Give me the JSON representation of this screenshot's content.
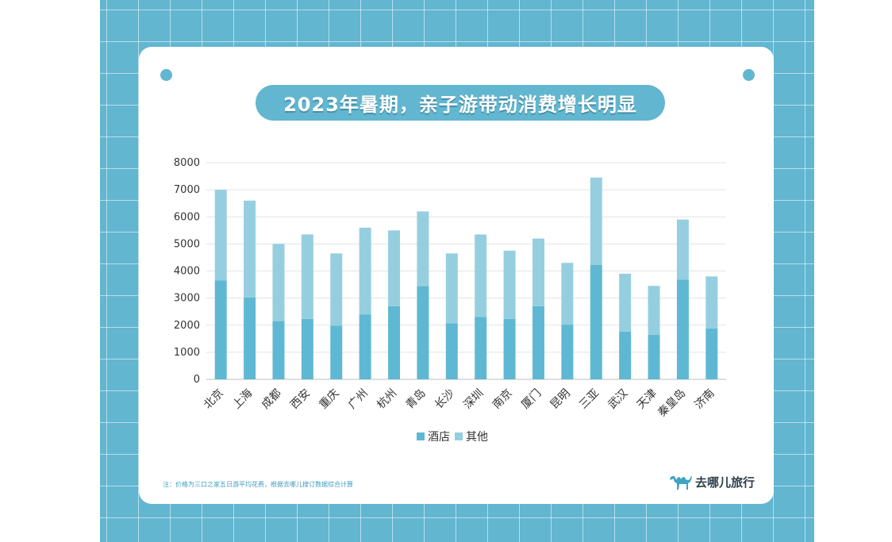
{
  "header": {
    "title": "2023年暑期，亲子游带动消费增长明显"
  },
  "footer": {
    "note": "注：价格为三口之家五日游平均花费，根据去哪儿搜订数据综合计算",
    "logo_text": "去哪儿旅行"
  },
  "colors": {
    "background": "#62b6d0",
    "hotel": "#5fb8d3",
    "other": "#95cfdf",
    "accent": "#62b6d0"
  },
  "chart_data": {
    "type": "bar",
    "stacked": true,
    "categories": [
      "北京",
      "上海",
      "成都",
      "西安",
      "重庆",
      "广州",
      "杭州",
      "青岛",
      "长沙",
      "深圳",
      "南京",
      "厦门",
      "昆明",
      "三亚",
      "武汉",
      "天津",
      "秦皇岛",
      "济南"
    ],
    "series": [
      {
        "name": "酒店",
        "values": [
          3650,
          3020,
          2150,
          2230,
          1980,
          2400,
          2700,
          3450,
          2070,
          2300,
          2230,
          2700,
          2020,
          4230,
          1760,
          1640,
          3680,
          1880
        ]
      },
      {
        "name": "其他",
        "values": [
          3350,
          3580,
          2850,
          3120,
          2670,
          3200,
          2800,
          2750,
          2580,
          3050,
          2520,
          2500,
          2280,
          3220,
          2140,
          1810,
          2220,
          1920
        ]
      }
    ],
    "yticks": [
      "0",
      "1000",
      "2000",
      "3000",
      "4000",
      "5000",
      "6000",
      "7000",
      "8000"
    ],
    "ylim": [
      0,
      8000
    ],
    "legend": [
      "酒店",
      "其他"
    ],
    "legend_position": "bottom",
    "grid": true,
    "xlabel": "",
    "ylabel": ""
  }
}
